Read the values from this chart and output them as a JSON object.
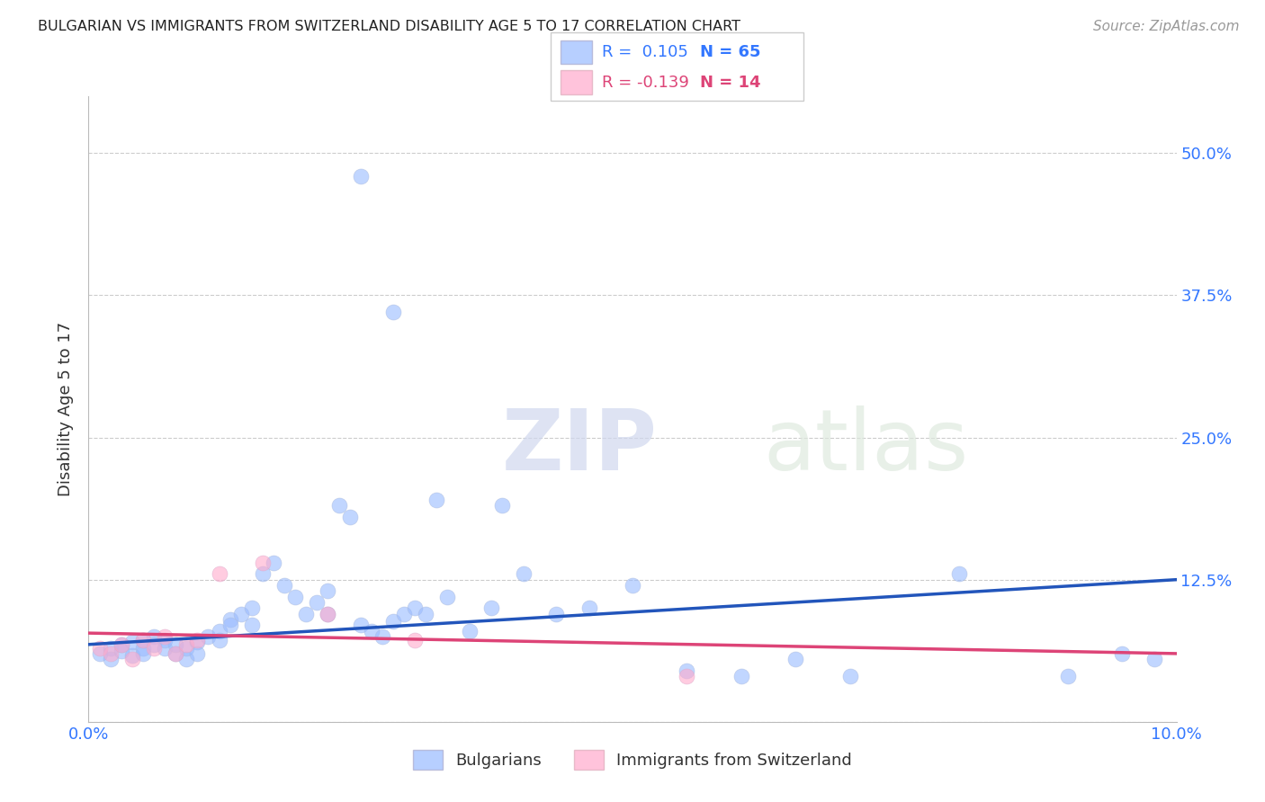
{
  "title": "BULGARIAN VS IMMIGRANTS FROM SWITZERLAND DISABILITY AGE 5 TO 17 CORRELATION CHART",
  "source": "Source: ZipAtlas.com",
  "ylabel": "Disability Age 5 to 17",
  "xlim": [
    0.0,
    0.1
  ],
  "ylim": [
    0.0,
    0.55
  ],
  "x_ticks": [
    0.0,
    0.02,
    0.04,
    0.06,
    0.08,
    0.1
  ],
  "x_tick_labels": [
    "0.0%",
    "",
    "",
    "",
    "",
    "10.0%"
  ],
  "y_ticks": [
    0.0,
    0.125,
    0.25,
    0.375,
    0.5
  ],
  "y_tick_labels": [
    "",
    "12.5%",
    "25.0%",
    "37.5%",
    "50.0%"
  ],
  "background_color": "#ffffff",
  "grid_color": "#cccccc",
  "blue_color": "#99bbff",
  "pink_color": "#ffaacc",
  "blue_line_color": "#2255bb",
  "pink_line_color": "#dd4477",
  "title_color": "#222222",
  "axis_label_color": "#333333",
  "tick_color": "#3377ff",
  "scatter_blue_x": [
    0.001,
    0.002,
    0.002,
    0.003,
    0.003,
    0.004,
    0.004,
    0.005,
    0.005,
    0.005,
    0.006,
    0.006,
    0.007,
    0.007,
    0.008,
    0.008,
    0.009,
    0.009,
    0.01,
    0.01,
    0.011,
    0.012,
    0.012,
    0.013,
    0.013,
    0.014,
    0.015,
    0.015,
    0.016,
    0.017,
    0.018,
    0.019,
    0.02,
    0.021,
    0.022,
    0.022,
    0.023,
    0.024,
    0.025,
    0.026,
    0.027,
    0.028,
    0.029,
    0.03,
    0.031,
    0.033,
    0.035,
    0.037,
    0.04,
    0.043,
    0.046,
    0.05,
    0.055,
    0.06,
    0.065,
    0.07,
    0.08,
    0.09,
    0.095,
    0.098,
    0.025,
    0.028,
    0.032,
    0.038
  ],
  "scatter_blue_y": [
    0.06,
    0.065,
    0.055,
    0.062,
    0.068,
    0.058,
    0.07,
    0.065,
    0.072,
    0.06,
    0.075,
    0.068,
    0.065,
    0.072,
    0.06,
    0.068,
    0.055,
    0.065,
    0.07,
    0.06,
    0.075,
    0.08,
    0.072,
    0.09,
    0.085,
    0.095,
    0.1,
    0.085,
    0.13,
    0.14,
    0.12,
    0.11,
    0.095,
    0.105,
    0.115,
    0.095,
    0.19,
    0.18,
    0.085,
    0.08,
    0.075,
    0.088,
    0.095,
    0.1,
    0.095,
    0.11,
    0.08,
    0.1,
    0.13,
    0.095,
    0.1,
    0.12,
    0.045,
    0.04,
    0.055,
    0.04,
    0.13,
    0.04,
    0.06,
    0.055,
    0.48,
    0.36,
    0.195,
    0.19
  ],
  "scatter_pink_x": [
    0.001,
    0.002,
    0.003,
    0.004,
    0.005,
    0.006,
    0.007,
    0.008,
    0.009,
    0.01,
    0.012,
    0.016,
    0.022,
    0.03,
    0.055
  ],
  "scatter_pink_y": [
    0.065,
    0.06,
    0.068,
    0.055,
    0.072,
    0.065,
    0.075,
    0.06,
    0.068,
    0.072,
    0.13,
    0.14,
    0.095,
    0.072,
    0.04
  ],
  "blue_trend_x": [
    0.0,
    0.1
  ],
  "blue_trend_y": [
    0.068,
    0.125
  ],
  "pink_trend_x": [
    0.0,
    0.1
  ],
  "pink_trend_y": [
    0.078,
    0.06
  ]
}
